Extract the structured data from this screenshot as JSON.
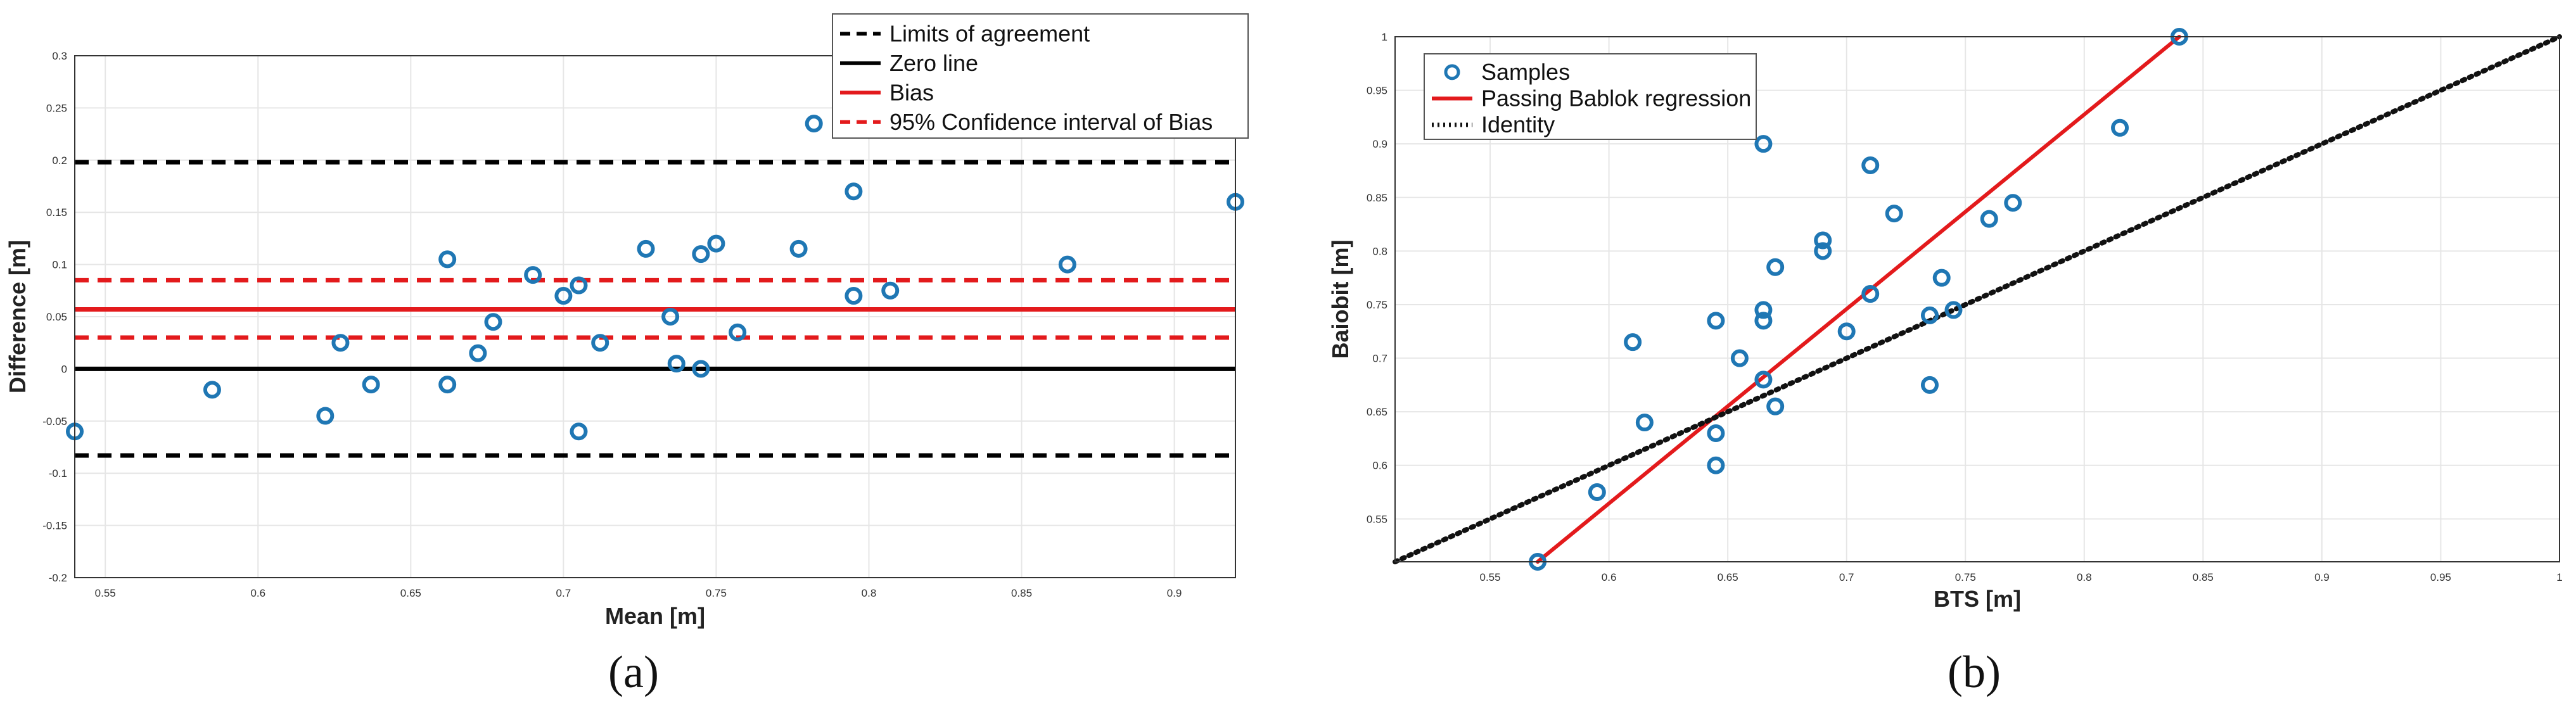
{
  "chart_data": [
    {
      "type": "scatter",
      "panel_label": "(a)",
      "xlabel": "Mean [m]",
      "ylabel": "Difference [m]",
      "xlim": [
        0.54,
        0.92
      ],
      "ylim": [
        -0.2,
        0.3
      ],
      "xticks": [
        "0.55",
        "0.6",
        "0.65",
        "0.7",
        "0.75",
        "0.8",
        "0.85",
        "0.9"
      ],
      "xtick_values": [
        0.55,
        0.6,
        0.65,
        0.7,
        0.75,
        0.8,
        0.85,
        0.9
      ],
      "yticks": [
        "-0.2",
        "-0.15",
        "-0.1",
        "-0.05",
        "0",
        "0.05",
        "0.1",
        "0.15",
        "0.2",
        "0.25",
        "0.3"
      ],
      "ytick_values": [
        -0.2,
        -0.15,
        -0.1,
        -0.05,
        0,
        0.05,
        0.1,
        0.15,
        0.2,
        0.25,
        0.3
      ],
      "grid": true,
      "legend_position": "top-right",
      "legend": [
        {
          "label": "Limits of agreement",
          "color": "#000000",
          "style": "dashed"
        },
        {
          "label": "Zero line",
          "color": "#000000",
          "style": "solid"
        },
        {
          "label": "Bias",
          "color": "#e31a1c",
          "style": "solid"
        },
        {
          "label": "95% Confidence interval of Bias",
          "color": "#e31a1c",
          "style": "dashed"
        }
      ],
      "hlines": [
        {
          "y": 0.198,
          "color": "#000000",
          "style": "dashed"
        },
        {
          "y": -0.083,
          "color": "#000000",
          "style": "dashed"
        },
        {
          "y": 0,
          "color": "#000000",
          "style": "solid"
        },
        {
          "y": 0.057,
          "color": "#e31a1c",
          "style": "solid"
        },
        {
          "y": 0.085,
          "color": "#e31a1c",
          "style": "dashed"
        },
        {
          "y": 0.03,
          "color": "#e31a1c",
          "style": "dashed"
        }
      ],
      "marker_color": "#1f77b4",
      "points": [
        [
          0.54,
          -0.06
        ],
        [
          0.585,
          -0.02
        ],
        [
          0.622,
          -0.045
        ],
        [
          0.627,
          0.025
        ],
        [
          0.637,
          -0.015
        ],
        [
          0.662,
          0.105
        ],
        [
          0.662,
          -0.015
        ],
        [
          0.672,
          0.015
        ],
        [
          0.677,
          0.045
        ],
        [
          0.69,
          0.09
        ],
        [
          0.7,
          0.07
        ],
        [
          0.705,
          0.08
        ],
        [
          0.705,
          -0.06
        ],
        [
          0.712,
          0.025
        ],
        [
          0.727,
          0.115
        ],
        [
          0.735,
          0.05
        ],
        [
          0.737,
          0.005
        ],
        [
          0.745,
          0.11
        ],
        [
          0.745,
          0.0
        ],
        [
          0.75,
          0.12
        ],
        [
          0.757,
          0.035
        ],
        [
          0.777,
          0.115
        ],
        [
          0.782,
          0.235
        ],
        [
          0.795,
          0.17
        ],
        [
          0.795,
          0.07
        ],
        [
          0.807,
          0.075
        ],
        [
          0.865,
          0.1
        ],
        [
          0.92,
          0.16
        ]
      ]
    },
    {
      "type": "scatter",
      "panel_label": "(b)",
      "xlabel": "BTS [m]",
      "ylabel": "Baiobit [m]",
      "xlim": [
        0.51,
        1.0
      ],
      "ylim": [
        0.51,
        1.0
      ],
      "xticks": [
        "0.55",
        "0.6",
        "0.65",
        "0.7",
        "0.75",
        "0.8",
        "0.85",
        "0.9",
        "0.95",
        "1"
      ],
      "xtick_values": [
        0.55,
        0.6,
        0.65,
        0.7,
        0.75,
        0.8,
        0.85,
        0.9,
        0.95,
        1.0
      ],
      "yticks": [
        "0.55",
        "0.6",
        "0.65",
        "0.7",
        "0.75",
        "0.8",
        "0.85",
        "0.9",
        "0.95",
        "1"
      ],
      "ytick_values": [
        0.55,
        0.6,
        0.65,
        0.7,
        0.75,
        0.8,
        0.85,
        0.9,
        0.95,
        1.0
      ],
      "grid": true,
      "legend_position": "top-left",
      "legend": [
        {
          "label": "Samples",
          "color": "#1f77b4",
          "style": "marker"
        },
        {
          "label": "Passing Bablok regression",
          "color": "#e31a1c",
          "style": "solid"
        },
        {
          "label": "Identity",
          "color": "#111111",
          "style": "dotted"
        }
      ],
      "lines": [
        {
          "from": [
            0.57,
            0.51
          ],
          "to": [
            0.84,
            1.0
          ],
          "color": "#e31a1c",
          "style": "solid"
        },
        {
          "from": [
            0.51,
            0.51
          ],
          "to": [
            1.0,
            1.0
          ],
          "color": "#111111",
          "style": "dotted"
        }
      ],
      "marker_color": "#1f77b4",
      "points": [
        [
          0.57,
          0.51
        ],
        [
          0.595,
          0.575
        ],
        [
          0.61,
          0.715
        ],
        [
          0.615,
          0.64
        ],
        [
          0.645,
          0.735
        ],
        [
          0.645,
          0.63
        ],
        [
          0.645,
          0.6
        ],
        [
          0.655,
          0.7
        ],
        [
          0.665,
          0.9
        ],
        [
          0.665,
          0.745
        ],
        [
          0.665,
          0.735
        ],
        [
          0.665,
          0.68
        ],
        [
          0.67,
          0.785
        ],
        [
          0.67,
          0.655
        ],
        [
          0.69,
          0.81
        ],
        [
          0.69,
          0.8
        ],
        [
          0.7,
          0.725
        ],
        [
          0.71,
          0.88
        ],
        [
          0.71,
          0.76
        ],
        [
          0.72,
          0.835
        ],
        [
          0.735,
          0.74
        ],
        [
          0.735,
          0.675
        ],
        [
          0.74,
          0.775
        ],
        [
          0.745,
          0.745
        ],
        [
          0.76,
          0.83
        ],
        [
          0.77,
          0.845
        ],
        [
          0.815,
          0.915
        ],
        [
          0.84,
          1.0
        ]
      ]
    }
  ]
}
